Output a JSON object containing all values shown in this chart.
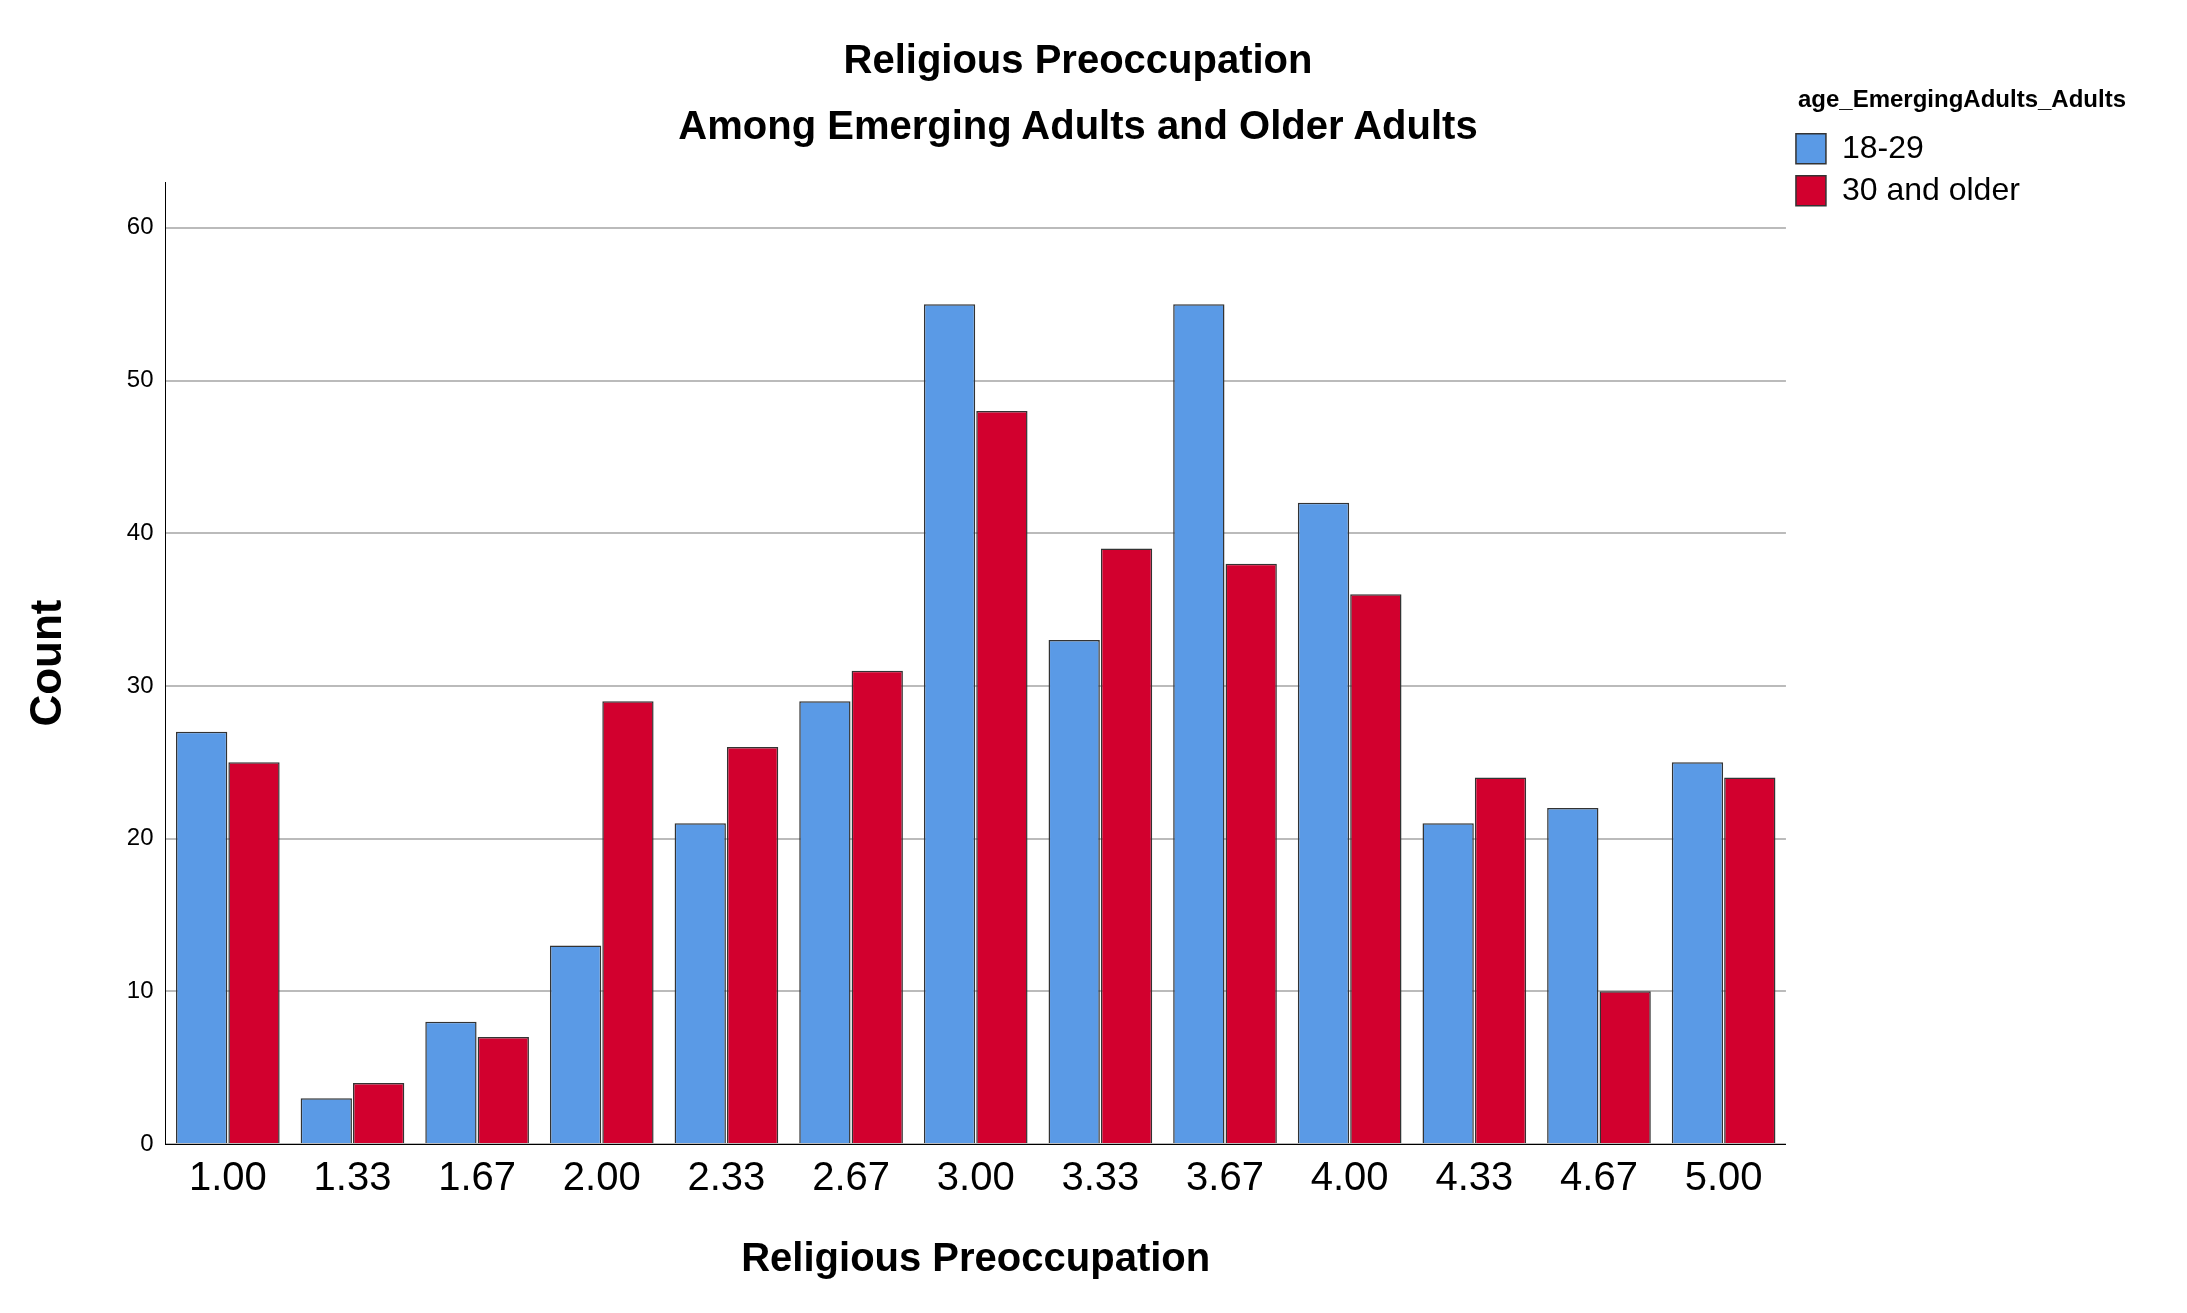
{
  "chart_data": {
    "type": "bar",
    "title": "Religious Preoccupation",
    "subtitle": "Among Emerging Adults and Older Adults",
    "xlabel": "Religious Preoccupation",
    "ylabel": "Count",
    "legend_title": "age_EmergingAdults_Adults",
    "categories": [
      "1.00",
      "1.33",
      "1.67",
      "2.00",
      "2.33",
      "2.67",
      "3.00",
      "3.33",
      "3.67",
      "4.00",
      "4.33",
      "4.67",
      "5.00"
    ],
    "series": [
      {
        "name": "18-29",
        "color": "#5a9ae6",
        "values": [
          27,
          3,
          8,
          13,
          21,
          29,
          55,
          33,
          55,
          42,
          21,
          22,
          25
        ]
      },
      {
        "name": "30 and older",
        "color": "#d2002e",
        "values": [
          25,
          4,
          7,
          29,
          26,
          31,
          48,
          39,
          38,
          36,
          24,
          10,
          24
        ]
      }
    ],
    "ylim": [
      0,
      63
    ],
    "yticks": [
      0,
      10,
      20,
      30,
      40,
      50,
      60
    ],
    "grid": "y",
    "legend": "top right"
  }
}
